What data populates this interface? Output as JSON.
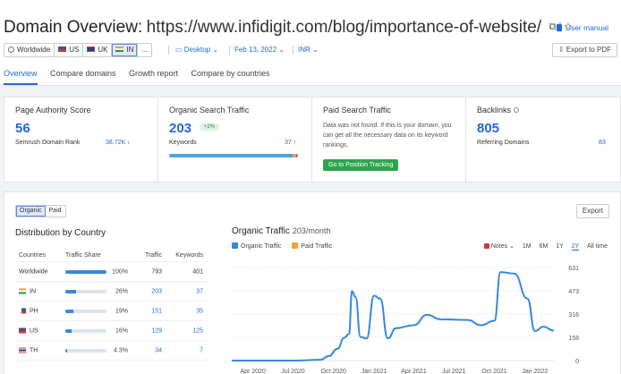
{
  "header": {
    "title": "Domain Overview:",
    "url": "https://www.infidigit.com/blog/importance-of-website/",
    "user_manual": "User manual",
    "export_pdf": "Export to PDF"
  },
  "controls": {
    "regions": [
      "Worldwide",
      "US",
      "UK",
      "IN",
      "..."
    ],
    "selected_region": "IN",
    "device": "Desktop",
    "date": "Feb 13, 2022",
    "currency": "INR"
  },
  "tabs": [
    {
      "label": "Overview",
      "active": true
    },
    {
      "label": "Compare domains",
      "active": false
    },
    {
      "label": "Growth report",
      "active": false
    },
    {
      "label": "Compare by countries",
      "active": false
    }
  ],
  "metrics": {
    "authority": {
      "title": "Page Authority Score",
      "value": "56",
      "sub": "Semrush Domain Rank",
      "sub_value": "38.72K ↓"
    },
    "organic": {
      "title": "Organic Search Traffic",
      "value": "203",
      "badge": "+2%",
      "sub": "Keywords",
      "sub_value": "37 ↑"
    },
    "paid": {
      "title": "Paid Search Traffic",
      "message": "Data was not found. If this is your domain, you can get all the necessary data on its keyword rankings.",
      "button": "Go to Position Tracking"
    },
    "backlinks": {
      "title": "Backlinks",
      "value": "805",
      "sub": "Referring Domains",
      "sub_value": "83"
    }
  },
  "panel": {
    "toggle": [
      "Organic",
      "Paid"
    ],
    "export": "Export",
    "distribution_title": "Distribution by Country",
    "table_headers": [
      "Countries",
      "Traffic Share",
      "Traffic",
      "Keywords"
    ],
    "rows": [
      {
        "country": "Worldwide",
        "share_label": "100%",
        "share": 1.0,
        "traffic": "793",
        "keywords": "401",
        "flag": "none"
      },
      {
        "country": "IN",
        "share_label": "26%",
        "share": 0.26,
        "traffic": "203",
        "keywords": "37",
        "flag": "in"
      },
      {
        "country": "PH",
        "share_label": "19%",
        "share": 0.19,
        "traffic": "151",
        "keywords": "35",
        "flag": "ph"
      },
      {
        "country": "US",
        "share_label": "16%",
        "share": 0.16,
        "traffic": "129",
        "keywords": "125",
        "flag": "us"
      },
      {
        "country": "TH",
        "share_label": "4.3%",
        "share": 0.043,
        "traffic": "34",
        "keywords": "7",
        "flag": "th"
      }
    ],
    "chart_title": "Organic Traffic",
    "chart_subtitle": "203/month",
    "legend": [
      {
        "label": "Organic Traffic",
        "color": "#3788dc"
      },
      {
        "label": "Paid Traffic",
        "color": "#f3a13a"
      }
    ],
    "notes_label": "Notes",
    "ranges": [
      "1M",
      "6M",
      "1Y",
      "2Y",
      "All time"
    ],
    "active_range": "2Y"
  },
  "chart_data": {
    "type": "line",
    "title": "Organic Traffic",
    "subtitle": "203/month",
    "series": [
      {
        "name": "Organic Traffic",
        "color": "#3788dc",
        "points": [
          [
            "2020-02-13",
            0
          ],
          [
            "2020-04-01",
            0
          ],
          [
            "2020-07-01",
            0
          ],
          [
            "2020-09-01",
            5
          ],
          [
            "2020-09-20",
            30
          ],
          [
            "2020-10-10",
            80
          ],
          [
            "2020-10-25",
            155
          ],
          [
            "2020-11-05",
            180
          ],
          [
            "2020-11-12",
            470
          ],
          [
            "2020-11-20",
            430
          ],
          [
            "2020-12-01",
            160
          ],
          [
            "2020-12-15",
            150
          ],
          [
            "2021-01-01",
            440
          ],
          [
            "2021-01-15",
            420
          ],
          [
            "2021-02-01",
            150
          ],
          [
            "2021-02-20",
            220
          ],
          [
            "2021-04-01",
            240
          ],
          [
            "2021-05-01",
            310
          ],
          [
            "2021-06-01",
            280
          ],
          [
            "2021-08-01",
            275
          ],
          [
            "2021-09-01",
            240
          ],
          [
            "2021-10-01",
            270
          ],
          [
            "2021-10-15",
            600
          ],
          [
            "2021-11-15",
            590
          ],
          [
            "2021-12-15",
            420
          ],
          [
            "2022-01-01",
            200
          ],
          [
            "2022-01-20",
            230
          ],
          [
            "2022-02-13",
            203
          ]
        ]
      },
      {
        "name": "Paid Traffic",
        "color": "#f3a13a",
        "points": []
      }
    ],
    "x_range": [
      "2020-02-13",
      "2022-02-13"
    ],
    "x_ticks": [
      "Apr 2020",
      "Jul 2020",
      "Oct 2020",
      "Jan 2021",
      "Apr 2021",
      "Jul 2021",
      "Oct 2021",
      "Jan 2022"
    ],
    "x_tick_dates": [
      "2020-04-01",
      "2020-07-01",
      "2020-10-01",
      "2021-01-01",
      "2021-04-01",
      "2021-07-01",
      "2021-10-01",
      "2022-01-01"
    ],
    "y_ticks": [
      0,
      158,
      316,
      473,
      631
    ],
    "ylim": [
      0,
      631
    ],
    "grid": true
  }
}
